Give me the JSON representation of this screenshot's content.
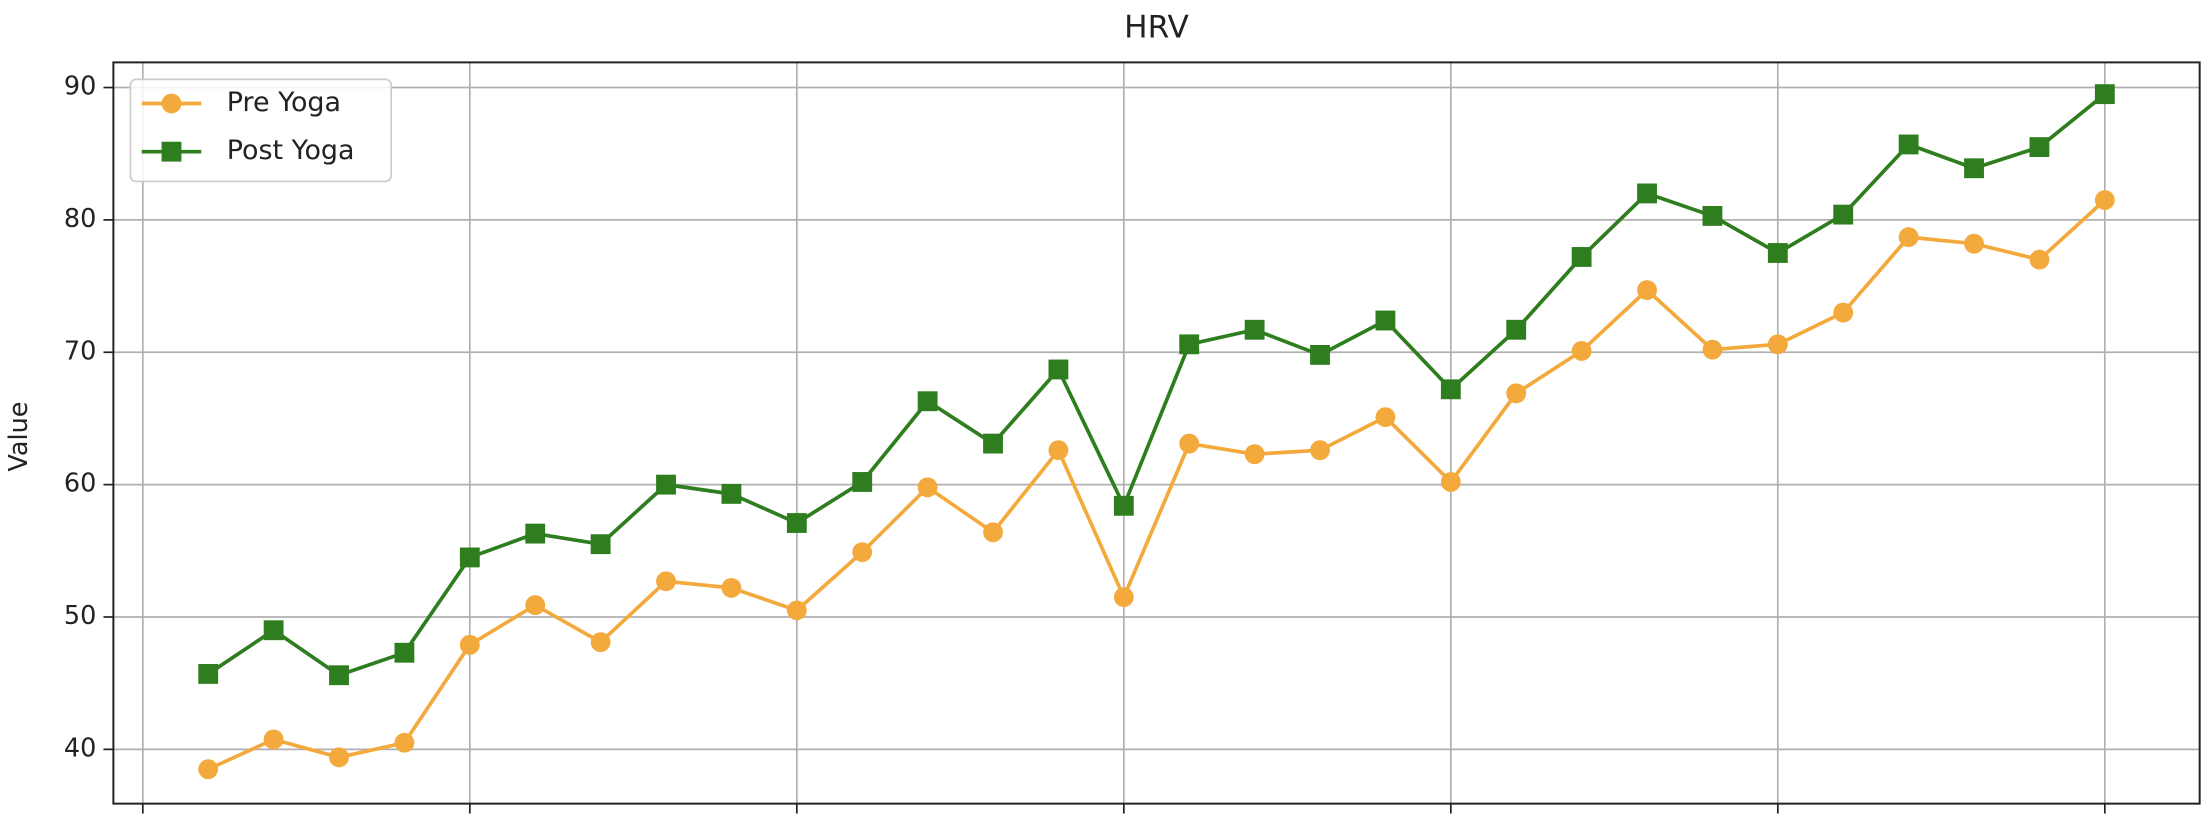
{
  "chart_data": {
    "type": "line",
    "title": "HRV",
    "y_label": "Value",
    "x": [
      1,
      2,
      3,
      4,
      5,
      6,
      7,
      8,
      9,
      10,
      11,
      12,
      13,
      14,
      15,
      16,
      17,
      18,
      19,
      20,
      21,
      22,
      23,
      24,
      25,
      26,
      27,
      28,
      29,
      30
    ],
    "xlim": [
      -0.45,
      31.45
    ],
    "xticks": [
      0,
      5,
      10,
      15,
      20,
      25,
      30
    ],
    "ylim": [
      35.9,
      91.9
    ],
    "yticks": [
      40,
      50,
      60,
      70,
      80,
      90
    ],
    "grid": true,
    "legend": "upper left",
    "series": [
      {
        "name": "Pre Yoga",
        "color": "#f4a93d",
        "marker": "circle",
        "values": [
          38.5,
          40.75,
          39.4,
          40.5,
          47.9,
          50.9,
          48.1,
          52.7,
          52.2,
          50.5,
          54.9,
          59.8,
          56.4,
          62.6,
          51.5,
          63.1,
          62.3,
          62.6,
          65.1,
          60.2,
          66.9,
          70.1,
          74.7,
          70.2,
          70.6,
          73.0,
          78.7,
          78.2,
          77.0,
          81.5
        ]
      },
      {
        "name": "Post Yoga",
        "color": "#2e7d1e",
        "marker": "square",
        "values": [
          45.7,
          49.0,
          45.6,
          47.3,
          54.5,
          56.3,
          55.5,
          60.0,
          59.3,
          57.1,
          60.2,
          66.3,
          63.1,
          68.7,
          58.4,
          70.6,
          71.7,
          69.8,
          72.4,
          67.2,
          71.7,
          77.2,
          82.0,
          80.3,
          77.5,
          80.4,
          85.7,
          83.9,
          85.5,
          89.5
        ]
      }
    ]
  }
}
